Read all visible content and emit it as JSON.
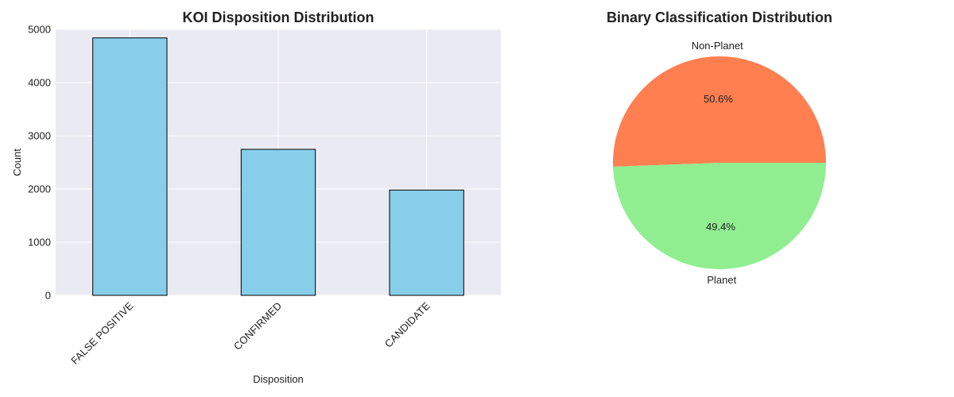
{
  "chart_data": [
    {
      "type": "bar",
      "title": "KOI Disposition Distribution",
      "xlabel": "Disposition",
      "ylabel": "Count",
      "categories": [
        "FALSE POSITIVE",
        "CONFIRMED",
        "CANDIDATE"
      ],
      "values": [
        4840,
        2745,
        1980
      ],
      "ylim": [
        0,
        5000
      ],
      "yticks": [
        0,
        1000,
        2000,
        3000,
        4000,
        5000
      ],
      "grid": true,
      "bar_color": "#87ceeb",
      "edge_color": "#000000",
      "background": "#eaeaf2"
    },
    {
      "type": "pie",
      "title": "Binary Classification Distribution",
      "labels": [
        "Non-Planet",
        "Planet"
      ],
      "values": [
        50.6,
        49.4
      ],
      "percent_labels": [
        "50.6%",
        "49.4%"
      ],
      "colors": [
        "#ff7f50",
        "#90ee90"
      ]
    }
  ]
}
